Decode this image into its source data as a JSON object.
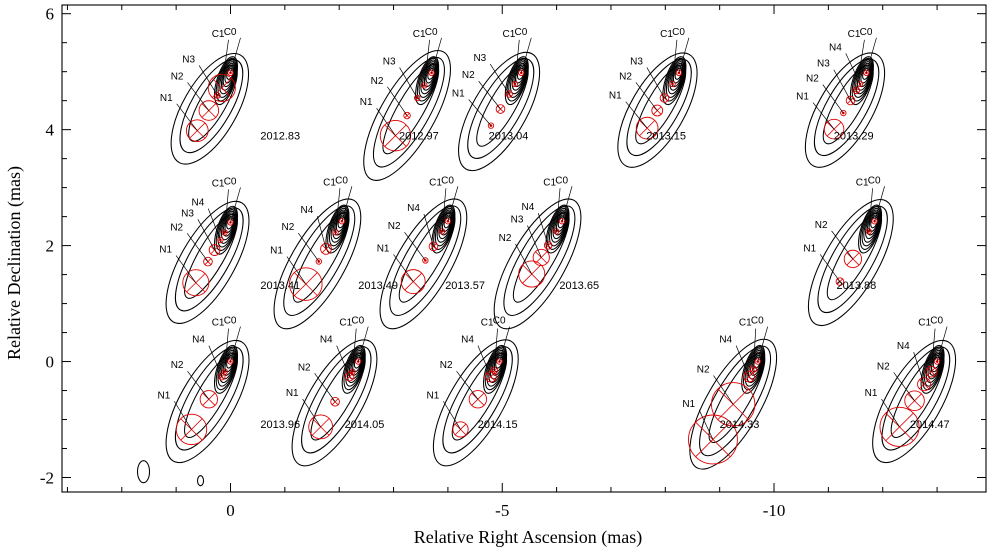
{
  "chart_data": {
    "type": "contour",
    "xlabel": "Relative Right Ascension (mas)",
    "ylabel": "Relative Declination (mas)",
    "xlim": [
      3.1,
      -13.9
    ],
    "ylim": [
      -2.25,
      6.15
    ],
    "xticks": [
      0,
      -5,
      -10
    ],
    "yticks": [
      6,
      4,
      2,
      0,
      -2
    ],
    "xtick_labels": [
      "0",
      "-5",
      "-10"
    ],
    "ytick_labels": [
      "6",
      "4",
      "2",
      "0",
      "-2"
    ],
    "grid": false,
    "component_color": "#e00000",
    "contour_color": "#000000",
    "beam": {
      "x": 1.6,
      "y": -1.9
    },
    "epochs": [
      {
        "label": "2012.83",
        "core": {
          "x": 0.0,
          "y": 4.98
        },
        "label_pos": {
          "x": -0.55,
          "y": 3.83
        },
        "length": 1.35,
        "components": [
          {
            "name": "C0",
            "r": 0.05,
            "d": 0.0
          },
          {
            "name": "C1",
            "r": 0.25,
            "d": 0.3
          },
          {
            "name": "N3",
            "r": 0.05,
            "d": 0.45
          },
          {
            "name": "N2",
            "r": 0.18,
            "d": 0.75
          },
          {
            "name": "N1",
            "r": 0.2,
            "d": 1.15
          }
        ]
      },
      {
        "label": "2012.97",
        "core": {
          "x": -3.7,
          "y": 4.98
        },
        "label_pos": {
          "x": -3.1,
          "y": 3.83
        },
        "length": 1.6,
        "components": [
          {
            "name": "C0",
            "r": 0.05,
            "d": 0.0
          },
          {
            "name": "C1",
            "r": 0.05,
            "d": 0.25
          },
          {
            "name": "N3",
            "r": 0.05,
            "d": 0.5
          },
          {
            "name": "N2",
            "r": 0.06,
            "d": 0.85
          },
          {
            "name": "N1",
            "r": 0.28,
            "d": 1.25
          }
        ]
      },
      {
        "label": "2013.04",
        "core": {
          "x": -5.35,
          "y": 4.98
        },
        "label_pos": {
          "x": -4.75,
          "y": 3.83
        },
        "length": 1.45,
        "components": [
          {
            "name": "C0",
            "r": 0.05,
            "d": 0.0
          },
          {
            "name": "C1",
            "r": 0.05,
            "d": 0.22
          },
          {
            "name": "N3",
            "r": 0.06,
            "d": 0.42
          },
          {
            "name": "N2",
            "r": 0.08,
            "d": 0.72
          },
          {
            "name": "N1",
            "r": 0.05,
            "d": 1.05
          }
        ]
      },
      {
        "label": "2013.15",
        "core": {
          "x": -8.25,
          "y": 4.98
        },
        "label_pos": {
          "x": -7.65,
          "y": 3.83
        },
        "length": 1.4,
        "components": [
          {
            "name": "C0",
            "r": 0.05,
            "d": 0.0
          },
          {
            "name": "C1",
            "r": 0.05,
            "d": 0.22
          },
          {
            "name": "N3",
            "r": 0.08,
            "d": 0.5
          },
          {
            "name": "N2",
            "r": 0.1,
            "d": 0.75
          },
          {
            "name": "N1",
            "r": 0.2,
            "d": 1.1
          }
        ]
      },
      {
        "label": "2013.29",
        "core": {
          "x": -11.7,
          "y": 4.98
        },
        "label_pos": {
          "x": -11.1,
          "y": 3.83
        },
        "length": 1.4,
        "components": [
          {
            "name": "C0",
            "r": 0.05,
            "d": 0.0
          },
          {
            "name": "N4",
            "r": 0.05,
            "d": 0.22
          },
          {
            "name": "C1",
            "r": 0.06,
            "d": 0.35
          },
          {
            "name": "N3",
            "r": 0.08,
            "d": 0.55
          },
          {
            "name": "N2",
            "r": 0.05,
            "d": 0.8
          },
          {
            "name": "N1",
            "r": 0.18,
            "d": 1.12
          }
        ]
      },
      {
        "label": "2013.41",
        "core": {
          "x": 0.0,
          "y": 2.4
        },
        "label_pos": {
          "x": -0.55,
          "y": 1.25
        },
        "length": 1.5,
        "components": [
          {
            "name": "C0",
            "r": 0.05,
            "d": 0.0
          },
          {
            "name": "C1",
            "r": 0.05,
            "d": 0.2
          },
          {
            "name": "N4",
            "r": 0.05,
            "d": 0.35
          },
          {
            "name": "N3",
            "r": 0.1,
            "d": 0.55
          },
          {
            "name": "N2",
            "r": 0.08,
            "d": 0.78
          },
          {
            "name": "N1",
            "r": 0.24,
            "d": 1.2
          }
        ]
      },
      {
        "label": "2013.49",
        "core": {
          "x": -2.05,
          "y": 2.42
        },
        "label_pos": {
          "x": -2.35,
          "y": 1.25
        },
        "length": 1.6,
        "components": [
          {
            "name": "C0",
            "r": 0.05,
            "d": 0.0
          },
          {
            "name": "C1",
            "r": 0.05,
            "d": 0.22
          },
          {
            "name": "N4",
            "r": 0.1,
            "d": 0.55
          },
          {
            "name": "N2",
            "r": 0.05,
            "d": 0.8
          },
          {
            "name": "N1",
            "r": 0.3,
            "d": 1.25
          }
        ]
      },
      {
        "label": "2013.57",
        "core": {
          "x": -4.0,
          "y": 2.42
        },
        "label_pos": {
          "x": -3.95,
          "y": 1.25
        },
        "length": 1.6,
        "components": [
          {
            "name": "C0",
            "r": 0.05,
            "d": 0.0
          },
          {
            "name": "C1",
            "r": 0.05,
            "d": 0.2
          },
          {
            "name": "N4",
            "r": 0.08,
            "d": 0.5
          },
          {
            "name": "N2",
            "r": 0.05,
            "d": 0.78
          },
          {
            "name": "N1",
            "r": 0.22,
            "d": 1.2
          }
        ]
      },
      {
        "label": "2013.65",
        "core": {
          "x": -6.1,
          "y": 2.42
        },
        "label_pos": {
          "x": -6.05,
          "y": 1.25
        },
        "length": 1.6,
        "components": [
          {
            "name": "C0",
            "r": 0.05,
            "d": 0.0
          },
          {
            "name": "C1",
            "r": 0.05,
            "d": 0.2
          },
          {
            "name": "N4",
            "r": 0.07,
            "d": 0.48
          },
          {
            "name": "N3",
            "r": 0.15,
            "d": 0.72
          },
          {
            "name": "N2",
            "r": 0.24,
            "d": 1.05
          }
        ]
      },
      {
        "label": "2013.88",
        "core": {
          "x": -11.85,
          "y": 2.42
        },
        "label_pos": {
          "x": -11.15,
          "y": 1.25
        },
        "length": 1.55,
        "components": [
          {
            "name": "C0",
            "r": 0.05,
            "d": 0.0
          },
          {
            "name": "C1",
            "r": 0.05,
            "d": 0.2
          },
          {
            "name": "N2",
            "r": 0.16,
            "d": 0.75
          },
          {
            "name": "N1",
            "r": 0.07,
            "d": 1.2
          }
        ]
      },
      {
        "label": "2013.96",
        "core": {
          "x": 0.0,
          "y": 0.0
        },
        "label_pos": {
          "x": -0.55,
          "y": -1.15
        },
        "length": 1.5,
        "components": [
          {
            "name": "C0",
            "r": 0.05,
            "d": 0.0
          },
          {
            "name": "C1",
            "r": 0.05,
            "d": 0.2
          },
          {
            "name": "N4",
            "r": 0.06,
            "d": 0.3
          },
          {
            "name": "N2",
            "r": 0.16,
            "d": 0.75
          },
          {
            "name": "N1",
            "r": 0.28,
            "d": 1.35
          }
        ]
      },
      {
        "label": "2014.05",
        "core": {
          "x": -2.35,
          "y": 0.0
        },
        "label_pos": {
          "x": -2.1,
          "y": -1.15
        },
        "length": 1.55,
        "components": [
          {
            "name": "C0",
            "r": 0.05,
            "d": 0.0
          },
          {
            "name": "C1",
            "r": 0.05,
            "d": 0.2
          },
          {
            "name": "N4",
            "r": 0.08,
            "d": 0.3
          },
          {
            "name": "N2",
            "r": 0.08,
            "d": 0.8
          },
          {
            "name": "N1",
            "r": 0.22,
            "d": 1.3
          }
        ]
      },
      {
        "label": "2014.15",
        "core": {
          "x": -4.95,
          "y": 0.0
        },
        "label_pos": {
          "x": -4.55,
          "y": -1.15
        },
        "length": 1.55,
        "components": [
          {
            "name": "C0",
            "r": 0.05,
            "d": 0.0
          },
          {
            "name": "C1",
            "r": 0.06,
            "d": 0.18
          },
          {
            "name": "N4",
            "r": 0.1,
            "d": 0.3
          },
          {
            "name": "N2",
            "r": 0.16,
            "d": 0.75
          },
          {
            "name": "N1",
            "r": 0.14,
            "d": 1.35
          }
        ]
      },
      {
        "label": "2014.33",
        "core": {
          "x": -9.7,
          "y": 0.0
        },
        "label_pos": {
          "x": -9.0,
          "y": -1.15
        },
        "length": 1.6,
        "components": [
          {
            "name": "C0",
            "r": 0.05,
            "d": 0.0
          },
          {
            "name": "C1",
            "r": 0.06,
            "d": 0.15
          },
          {
            "name": "N4",
            "r": 0.1,
            "d": 0.3
          },
          {
            "name": "N2",
            "r": 0.4,
            "d": 0.85
          },
          {
            "name": "N1",
            "r": 0.45,
            "d": 1.55
          }
        ]
      },
      {
        "label": "2014.47",
        "core": {
          "x": -13.0,
          "y": 0.0
        },
        "label_pos": {
          "x": -12.5,
          "y": -1.15
        },
        "length": 1.5,
        "components": [
          {
            "name": "C0",
            "r": 0.05,
            "d": 0.0
          },
          {
            "name": "C1",
            "r": 0.1,
            "d": 0.2
          },
          {
            "name": "N4",
            "r": 0.12,
            "d": 0.45
          },
          {
            "name": "N2",
            "r": 0.18,
            "d": 0.78
          },
          {
            "name": "N1",
            "r": 0.36,
            "d": 1.3
          }
        ]
      }
    ]
  }
}
